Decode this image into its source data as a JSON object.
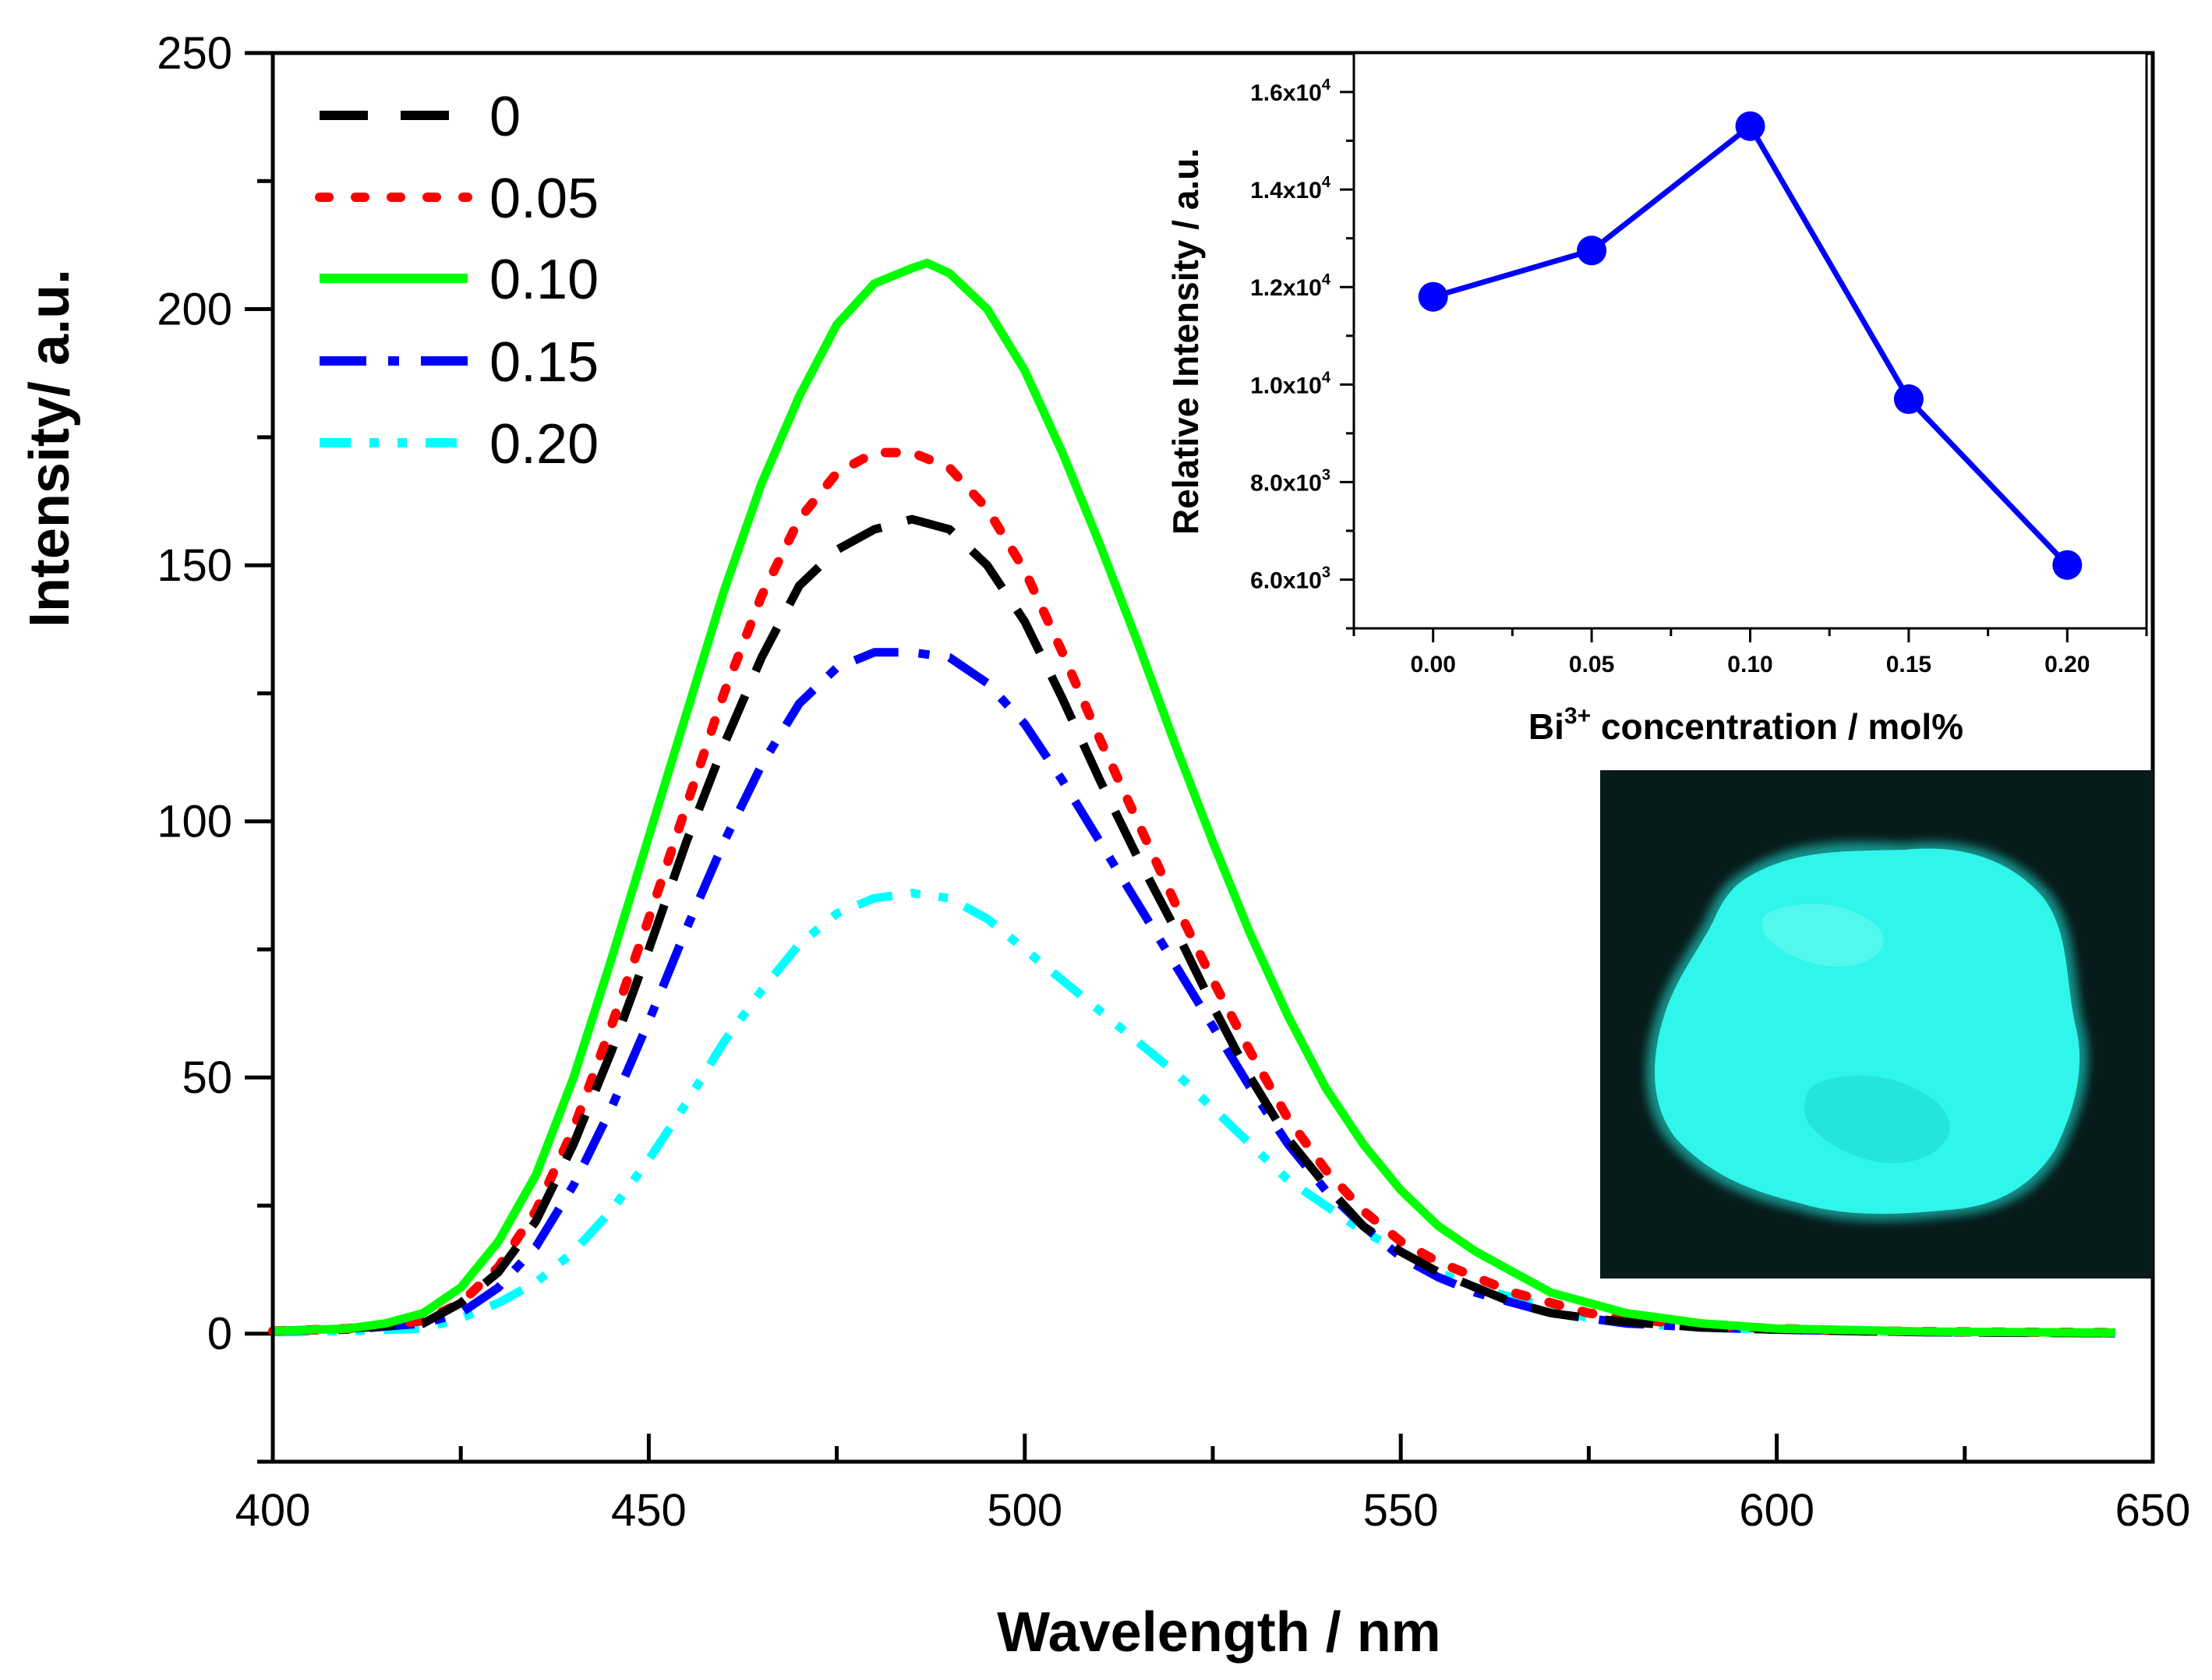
{
  "chart_data": [
    {
      "type": "line",
      "title": "",
      "xlabel": "Wavelength / nm",
      "ylabel": "Intensity/ a.u.",
      "xlim": [
        400,
        650
      ],
      "ylim": [
        -25,
        250
      ],
      "xticks": [
        400,
        450,
        500,
        550,
        600,
        650
      ],
      "xtick_labels": [
        "400",
        "450",
        "500",
        "550",
        "600",
        "650"
      ],
      "yticks": [
        0,
        50,
        100,
        150,
        200,
        250
      ],
      "ytick_labels": [
        "0",
        "50",
        "100",
        "150",
        "200",
        "250"
      ],
      "legend_position": "top-left",
      "series": [
        {
          "name": "0",
          "color": "#000000",
          "style": "dash",
          "x": [
            400,
            410,
            420,
            425,
            430,
            435,
            440,
            445,
            450,
            455,
            460,
            465,
            470,
            475,
            480,
            485,
            490,
            495,
            500,
            505,
            510,
            515,
            520,
            525,
            530,
            535,
            540,
            545,
            550,
            555,
            560,
            565,
            570,
            575,
            580,
            590,
            600,
            610,
            620,
            630,
            645
          ],
          "values": [
            0.5,
            1,
            2,
            6,
            12,
            22,
            37,
            55,
            75,
            96,
            115,
            132,
            146,
            153,
            157,
            159,
            157,
            150,
            139,
            124,
            108,
            93,
            79,
            64,
            50,
            38,
            29,
            21,
            16,
            12,
            9,
            6,
            4,
            3,
            2.3,
            1.2,
            0.8,
            0.5,
            0.3,
            0.2,
            0.1
          ]
        },
        {
          "name": "0.05",
          "color": "#ff0000",
          "style": "dot",
          "x": [
            400,
            410,
            420,
            425,
            430,
            435,
            440,
            445,
            450,
            455,
            460,
            465,
            470,
            475,
            480,
            485,
            490,
            495,
            500,
            505,
            510,
            515,
            520,
            525,
            530,
            535,
            540,
            545,
            550,
            555,
            560,
            565,
            570,
            575,
            580,
            590,
            600,
            610,
            620,
            630,
            645
          ],
          "values": [
            0.5,
            1,
            2.5,
            6,
            13,
            24,
            40,
            60,
            81,
            103,
            125,
            144,
            159,
            168,
            172,
            172,
            169,
            161,
            149,
            133,
            116,
            100,
            84,
            69,
            55,
            42,
            32,
            24,
            18,
            14,
            11,
            8,
            6,
            4,
            3,
            1.5,
            1,
            0.6,
            0.4,
            0.3,
            0.2
          ]
        },
        {
          "name": "0.10",
          "color": "#00ff00",
          "style": "solid",
          "x": [
            400,
            410,
            415,
            420,
            425,
            430,
            435,
            440,
            445,
            450,
            455,
            460,
            465,
            470,
            475,
            480,
            485,
            487,
            490,
            495,
            500,
            505,
            510,
            515,
            520,
            525,
            530,
            535,
            540,
            545,
            550,
            555,
            560,
            565,
            570,
            575,
            580,
            590,
            600,
            610,
            620,
            630,
            645
          ],
          "values": [
            0.5,
            1,
            2,
            4,
            9,
            18,
            31,
            50,
            73,
            97,
            121,
            145,
            166,
            183,
            197,
            205,
            208,
            209,
            207,
            200,
            188,
            172,
            154,
            135,
            115,
            96,
            78,
            62,
            48,
            37,
            28,
            21,
            16,
            12,
            8,
            6,
            4,
            2,
            1,
            0.7,
            0.4,
            0.3,
            0.2
          ]
        },
        {
          "name": "0.15",
          "color": "#0000ff",
          "style": "dashdot",
          "x": [
            400,
            410,
            420,
            425,
            430,
            435,
            440,
            445,
            450,
            455,
            460,
            465,
            470,
            475,
            480,
            485,
            490,
            495,
            500,
            505,
            510,
            515,
            520,
            525,
            530,
            535,
            540,
            545,
            550,
            555,
            560,
            565,
            570,
            575,
            580,
            590,
            600,
            610,
            620,
            630,
            645
          ],
          "values": [
            0.5,
            0.8,
            2,
            4,
            9,
            17,
            29,
            44,
            61,
            79,
            96,
            111,
            123,
            130,
            133,
            133,
            132,
            127,
            119,
            108,
            96,
            84,
            72,
            60,
            48,
            37,
            28,
            21,
            15,
            11,
            8,
            6,
            4,
            3,
            2,
            1.2,
            0.8,
            0.5,
            0.3,
            0.2,
            0.1
          ]
        },
        {
          "name": "0.20",
          "color": "#00ffff",
          "style": "dashdotdot",
          "x": [
            400,
            410,
            420,
            425,
            430,
            435,
            440,
            445,
            450,
            455,
            460,
            465,
            470,
            475,
            480,
            485,
            490,
            495,
            500,
            505,
            510,
            515,
            520,
            525,
            530,
            535,
            540,
            545,
            550,
            555,
            560,
            565,
            570,
            575,
            580,
            590,
            600,
            610,
            620,
            630,
            645
          ],
          "values": [
            0.3,
            0.5,
            1,
            3,
            6,
            10,
            16,
            24,
            34,
            45,
            57,
            67,
            76,
            82,
            85,
            86,
            85,
            81,
            75,
            69,
            63,
            57,
            51,
            44,
            37,
            30,
            25,
            20,
            16,
            12,
            9,
            7,
            5,
            3,
            2,
            1.2,
            0.8,
            0.5,
            0.3,
            0.2,
            0.1
          ]
        }
      ]
    },
    {
      "type": "line",
      "title": "",
      "xlabel": "Bi",
      "xlabel_superscript": "3+",
      "xlabel_rest": " concentration / mol%",
      "ylabel": "Relative Intensity / a.u.",
      "xlim": [
        -0.025,
        0.225
      ],
      "ylim": [
        5000,
        16800
      ],
      "xticks": [
        0.0,
        0.05,
        0.1,
        0.15,
        0.2
      ],
      "xtick_labels": [
        "0.00",
        "0.05",
        "0.10",
        "0.15",
        "0.20"
      ],
      "yticks": [
        6000,
        8000,
        10000,
        12000,
        14000,
        16000
      ],
      "ytick_labels": [
        {
          "mantissa": "6.0x10",
          "exp": "3"
        },
        {
          "mantissa": "8.0x10",
          "exp": "3"
        },
        {
          "mantissa": "1.0x10",
          "exp": "4"
        },
        {
          "mantissa": "1.2x10",
          "exp": "4"
        },
        {
          "mantissa": "1.4x10",
          "exp": "4"
        },
        {
          "mantissa": "1.6x10",
          "exp": "4"
        }
      ],
      "series": [
        {
          "name": "Relative Intensity",
          "color": "#0000ff",
          "style": "line-marker",
          "x": [
            0.0,
            0.05,
            0.1,
            0.15,
            0.2
          ],
          "values": [
            11800,
            12750,
            15300,
            9700,
            6300
          ]
        }
      ]
    }
  ],
  "photo": {
    "description_icon": "phosphor-powder-photo",
    "background_color": "#071c1a",
    "glow_color": "#22f0e6"
  }
}
